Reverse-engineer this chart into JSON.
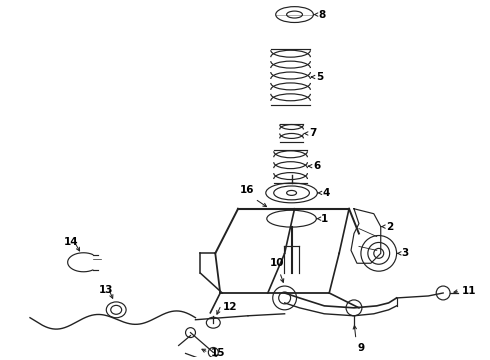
{
  "bg_color": "#ffffff",
  "lc": "#222222",
  "figsize": [
    4.9,
    3.6
  ],
  "dpi": 100,
  "label_fs": 7.5
}
